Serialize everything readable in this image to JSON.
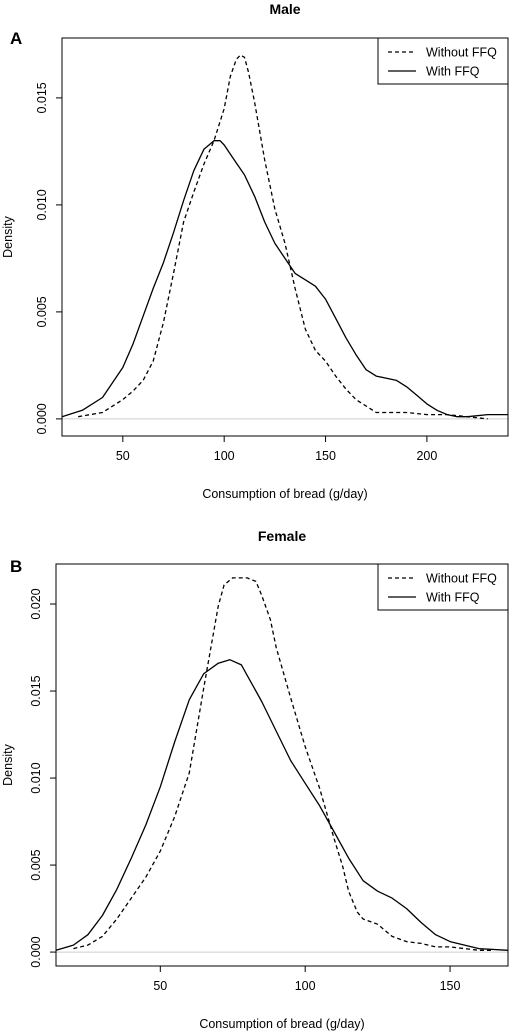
{
  "chart_data": [
    {
      "panel_label": "A",
      "type": "line",
      "title": "Male",
      "xlabel": "Consumption of bread (g/day)",
      "ylabel": "Density",
      "xlim": [
        20,
        240
      ],
      "ylim": [
        -0.0008,
        0.0178
      ],
      "x_ticks": [
        50,
        100,
        150,
        200
      ],
      "y_ticks": [
        0.0,
        0.005,
        0.01,
        0.015
      ],
      "y_tick_labels": [
        "0.000",
        "0.005",
        "0.010",
        "0.015"
      ],
      "legend": {
        "position": "top-right"
      },
      "series": [
        {
          "name": "Without FFQ",
          "style": "dashed",
          "x": [
            28,
            40,
            50,
            55,
            60,
            65,
            70,
            75,
            80,
            85,
            90,
            95,
            100,
            103,
            106,
            108,
            110,
            112,
            115,
            120,
            125,
            130,
            135,
            140,
            145,
            150,
            155,
            160,
            165,
            170,
            175,
            180,
            190,
            200,
            210,
            220,
            230
          ],
          "y": [
            0.0001,
            0.0003,
            0.0009,
            0.0013,
            0.0018,
            0.0027,
            0.0045,
            0.0068,
            0.0092,
            0.0106,
            0.0119,
            0.013,
            0.0145,
            0.016,
            0.0168,
            0.017,
            0.0169,
            0.0162,
            0.0148,
            0.0121,
            0.0098,
            0.0082,
            0.0061,
            0.0042,
            0.0032,
            0.0027,
            0.002,
            0.0014,
            0.0009,
            0.0006,
            0.0003,
            0.0003,
            0.0003,
            0.0002,
            0.0002,
            0.0001,
            0.0
          ]
        },
        {
          "name": "With FFQ",
          "style": "solid",
          "x": [
            20,
            30,
            40,
            50,
            55,
            60,
            65,
            70,
            75,
            80,
            85,
            90,
            95,
            98,
            100,
            105,
            110,
            115,
            120,
            125,
            130,
            135,
            140,
            145,
            150,
            155,
            160,
            165,
            170,
            175,
            180,
            185,
            190,
            195,
            200,
            205,
            210,
            215,
            220,
            230,
            240
          ],
          "y": [
            0.0001,
            0.0004,
            0.001,
            0.0024,
            0.0035,
            0.0048,
            0.0061,
            0.0073,
            0.0087,
            0.0102,
            0.0116,
            0.0126,
            0.013,
            0.013,
            0.0128,
            0.0121,
            0.0114,
            0.0104,
            0.0092,
            0.0082,
            0.0075,
            0.0068,
            0.0065,
            0.0062,
            0.0056,
            0.0047,
            0.0038,
            0.003,
            0.0023,
            0.002,
            0.0019,
            0.0018,
            0.0015,
            0.0011,
            0.0007,
            0.0004,
            0.0002,
            0.0001,
            0.0001,
            0.0002,
            0.0002
          ]
        }
      ]
    },
    {
      "panel_label": "B",
      "type": "line",
      "title": "Female",
      "xlabel": "Consumption of bread (g/day)",
      "ylabel": "Density",
      "xlim": [
        14,
        170
      ],
      "ylim": [
        -0.0008,
        0.0223
      ],
      "x_ticks": [
        50,
        100,
        150
      ],
      "y_ticks": [
        0.0,
        0.005,
        0.01,
        0.015,
        0.02
      ],
      "y_tick_labels": [
        "0.000",
        "0.005",
        "0.010",
        "0.015",
        "0.020"
      ],
      "legend": {
        "position": "top-right"
      },
      "series": [
        {
          "name": "Without FFQ",
          "style": "dashed",
          "x": [
            20,
            25,
            30,
            35,
            40,
            45,
            50,
            55,
            60,
            65,
            70,
            72,
            75,
            80,
            83,
            85,
            88,
            90,
            95,
            100,
            105,
            110,
            113,
            115,
            118,
            120,
            125,
            130,
            135,
            140,
            145,
            150,
            155,
            160,
            165
          ],
          "y": [
            0.0002,
            0.0004,
            0.0009,
            0.0019,
            0.0031,
            0.0043,
            0.0058,
            0.0078,
            0.0103,
            0.0152,
            0.0199,
            0.0211,
            0.0215,
            0.0215,
            0.0213,
            0.0205,
            0.0191,
            0.0175,
            0.0146,
            0.0118,
            0.0094,
            0.0065,
            0.0049,
            0.0035,
            0.0023,
            0.0019,
            0.0016,
            0.0009,
            0.0006,
            0.0005,
            0.0003,
            0.0003,
            0.0002,
            0.0001,
            0.0001
          ]
        },
        {
          "name": "With FFQ",
          "style": "solid",
          "x": [
            14,
            20,
            25,
            30,
            35,
            40,
            45,
            50,
            55,
            60,
            65,
            70,
            74,
            78,
            80,
            85,
            90,
            95,
            100,
            105,
            110,
            115,
            120,
            125,
            130,
            135,
            140,
            145,
            150,
            155,
            160,
            170
          ],
          "y": [
            0.0001,
            0.0004,
            0.001,
            0.0021,
            0.0036,
            0.0054,
            0.0073,
            0.0095,
            0.0121,
            0.0145,
            0.016,
            0.0166,
            0.0168,
            0.0165,
            0.0159,
            0.0144,
            0.0127,
            0.011,
            0.0097,
            0.0084,
            0.0069,
            0.0054,
            0.0041,
            0.0035,
            0.0031,
            0.0025,
            0.0017,
            0.001,
            0.0006,
            0.0004,
            0.0002,
            0.0001
          ]
        }
      ]
    }
  ]
}
